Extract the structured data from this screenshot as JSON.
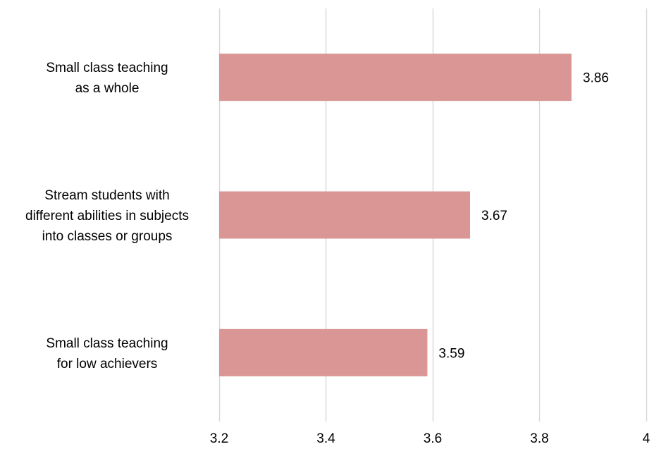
{
  "chart_data": {
    "type": "bar",
    "orientation": "horizontal",
    "title": "",
    "xlabel": "",
    "ylabel": "",
    "categories": [
      "Small class teaching as a whole",
      "Stream students with different abilities in subjects into classes or groups",
      "Small class teaching for low achievers"
    ],
    "category_label_lines": [
      [
        "Small class teaching",
        "as a whole"
      ],
      [
        "Stream students with",
        "different abilities in subjects",
        "into classes or groups"
      ],
      [
        "Small class teaching",
        "for low achievers"
      ]
    ],
    "values": [
      3.86,
      3.67,
      3.59
    ],
    "data_labels": [
      "3.86",
      "3.67",
      "3.59"
    ],
    "xlim": [
      3.2,
      4
    ],
    "x_ticks": [
      3.2,
      3.4,
      3.6,
      3.8,
      4
    ],
    "x_tick_labels": [
      "3.2",
      "3.4",
      "3.6",
      "3.8",
      "4"
    ],
    "grid": true,
    "legend": "none",
    "colors": {
      "bar": "#d99694",
      "grid": "#d9d9d9",
      "text": "#000000"
    }
  }
}
